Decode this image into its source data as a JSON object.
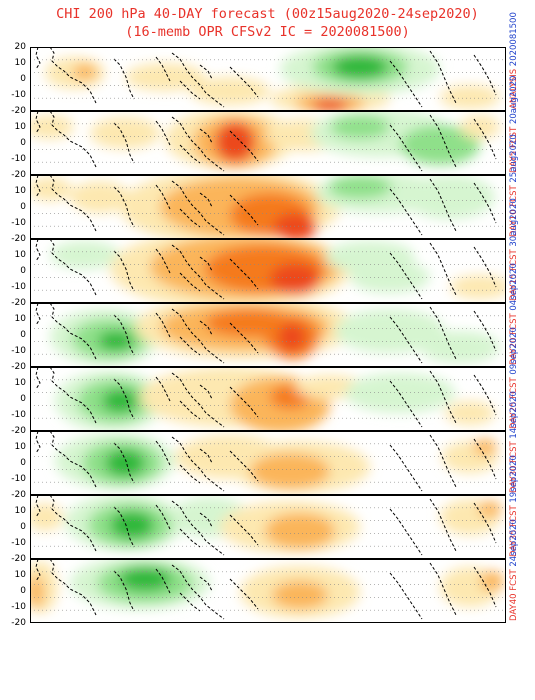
{
  "title": {
    "line1": "CHI 200 hPa 40-DAY forecast (00z15aug2020-24sep2020)",
    "line2": "(16-memb OPR CFSv2 IC = 2020081500)"
  },
  "y_ticks": [
    "20",
    "10",
    "0",
    "-10",
    "-20"
  ],
  "panels": [
    {
      "label": "ANALYSIS",
      "date": "2020081500"
    },
    {
      "label": "DAY5 FCST",
      "date": "20aug2020"
    },
    {
      "label": "DAY10 FCST",
      "date": "25aug2020"
    },
    {
      "label": "DAY15 FCST",
      "date": "30aug2020"
    },
    {
      "label": "DAY20 FCST",
      "date": "04sep2020"
    },
    {
      "label": "DAY25 FCST",
      "date": "09sep2020"
    },
    {
      "label": "DAY30 FCST",
      "date": "14sep2020"
    },
    {
      "label": "DAY35 FCST",
      "date": "19sep2020"
    },
    {
      "label": "DAY40 FCST",
      "date": "24sep2020"
    }
  ],
  "colors": {
    "title": "#e8322a",
    "date": "#2244cc",
    "green_light": "#d6f5d0",
    "green_mid": "#8fe08a",
    "green_dark": "#2fb83a",
    "orange_light": "#fde8b0",
    "orange_mid": "#fbb55a",
    "orange_dark": "#f57a1e",
    "red": "#ec4a1c"
  }
}
